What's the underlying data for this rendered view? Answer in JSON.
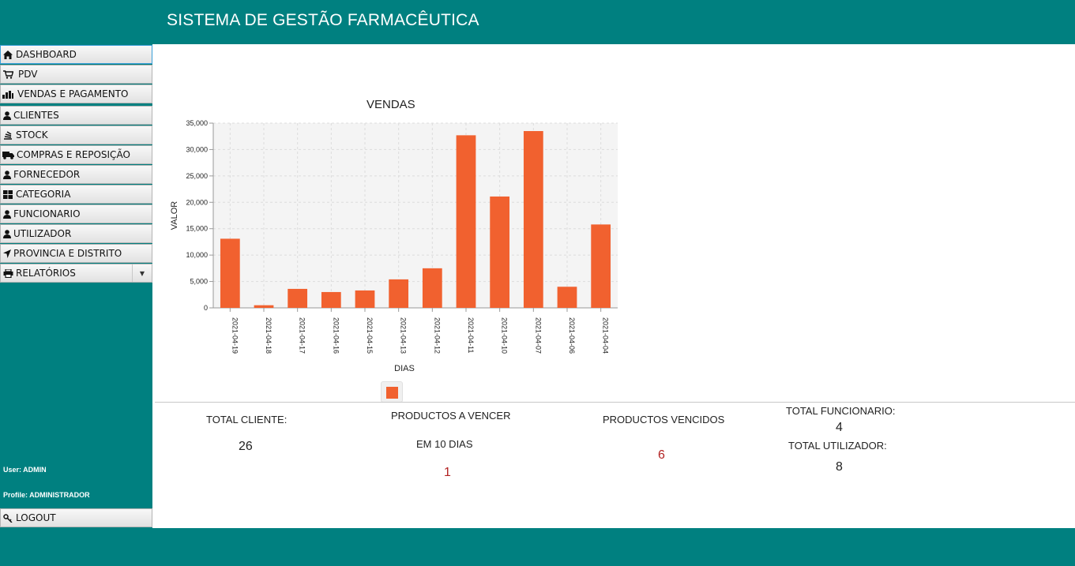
{
  "app": {
    "title": "SISTEMA DE GESTÃO FARMACÊUTICA"
  },
  "sidebar": {
    "items": [
      {
        "label": "DASHBOARD",
        "icon": "home-icon"
      },
      {
        "label": "PDV",
        "icon": "cart-icon"
      },
      {
        "label": "VENDAS E PAGAMENTO",
        "icon": "chart-icon"
      },
      {
        "label": "CLIENTES",
        "icon": "user-icon"
      },
      {
        "label": "STOCK",
        "icon": "stack-icon"
      },
      {
        "label": "COMPRAS  E REPOSIÇÃO",
        "icon": "truck-icon"
      },
      {
        "label": "FORNECEDOR",
        "icon": "user-icon"
      },
      {
        "label": "CATEGORIA",
        "icon": "grid-icon"
      },
      {
        "label": "FUNCIONARIO",
        "icon": "user-icon"
      },
      {
        "label": "UTILIZADOR",
        "icon": "user-icon"
      },
      {
        "label": "PROVINCIA E DISTRITO",
        "icon": "location-arrow-icon"
      },
      {
        "label": "RELATÓRIOS",
        "icon": "printer-icon"
      }
    ],
    "user_label": "User: ADMIN",
    "profile_label": "Profile: ADMINISTRADOR",
    "logout_label": "LOGOUT"
  },
  "chart_data": {
    "type": "bar",
    "title": "VENDAS",
    "xlabel": "DIAS",
    "ylabel": "VALOR",
    "categories": [
      "2021-04-19",
      "2021-04-18",
      "2021-04-17",
      "2021-04-16",
      "2021-04-15",
      "2021-04-13",
      "2021-04-12",
      "2021-04-11",
      "2021-04-10",
      "2021-04-07",
      "2021-04-06",
      "2021-04-04"
    ],
    "values": [
      13100,
      500,
      3600,
      3000,
      3300,
      5400,
      7500,
      32700,
      21100,
      33500,
      4000,
      15800
    ],
    "ylim": [
      0,
      35000
    ],
    "yticks": [
      "0",
      "5,000",
      "10,000",
      "15,000",
      "20,000",
      "25,000",
      "30,000",
      "35,000"
    ],
    "grid": true,
    "bar_color": "#f1612f"
  },
  "stats": {
    "total_cliente_label": "TOTAL CLIENTE:",
    "total_cliente_value": "26",
    "vencer_label_1": "PRODUCTOS A VENCER",
    "vencer_label_2": "EM 10 DIAS",
    "vencer_value": "1",
    "vencidos_label": "PRODUCTOS VENCIDOS",
    "vencidos_value": "6",
    "funcionario_label": "TOTAL FUNCIONARIO:",
    "funcionario_value": "4",
    "utilizador_label": "TOTAL UTILIZADOR:",
    "utilizador_value": "8"
  }
}
